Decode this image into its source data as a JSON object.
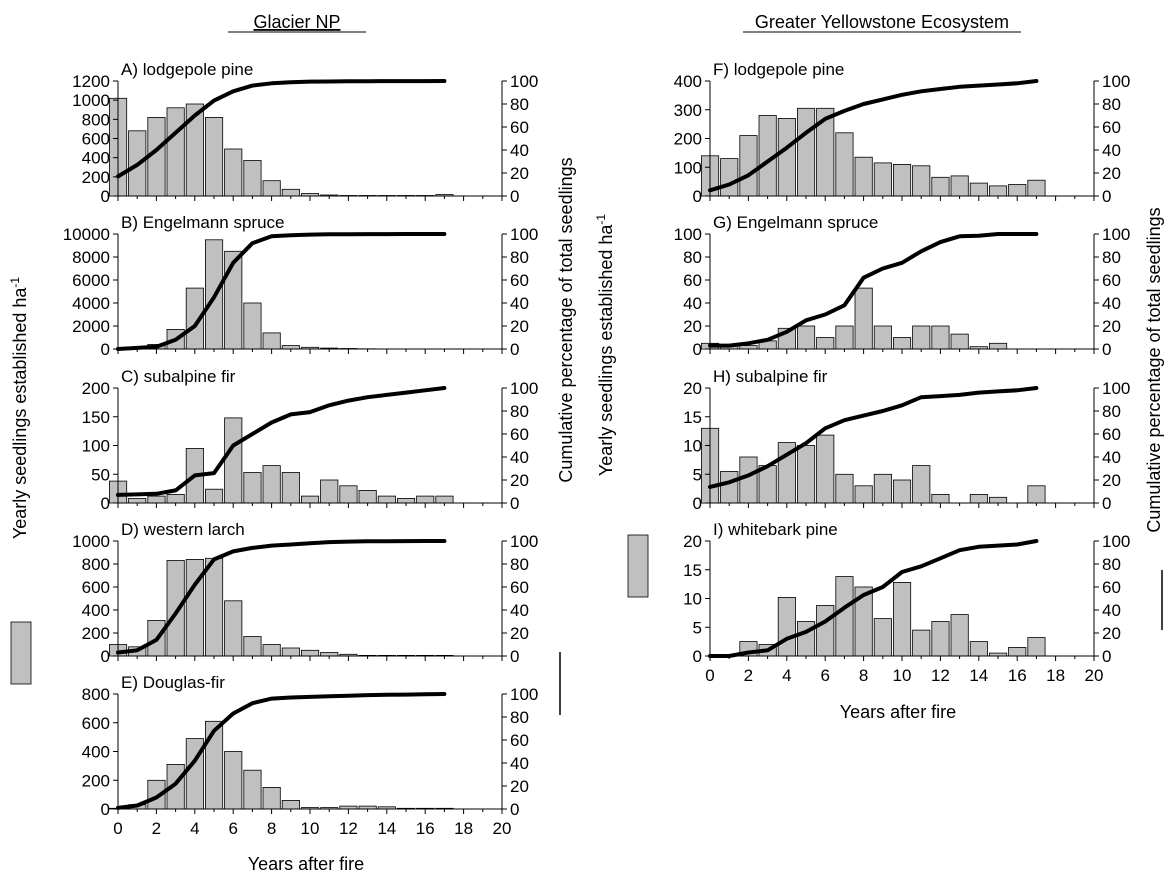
{
  "columns": [
    {
      "title": "Glacier NP"
    },
    {
      "title": "Greater Yellowstone Ecosystem"
    }
  ],
  "axis_labels": {
    "xlabel": "Years after fire",
    "ylabel_left": "Yearly seedlings established ha",
    "ylabel_left_superscript": "-1",
    "ylabel_right": "Cumulative percentage of total seedlings"
  },
  "legend": {
    "bar_symbol": "grey-box",
    "line_symbol": "black-line"
  },
  "chart_data": [
    {
      "type": "bar+line",
      "column": 0,
      "title": "A) lodgepole pine",
      "x": [
        0,
        1,
        2,
        3,
        4,
        5,
        6,
        7,
        8,
        9,
        10,
        11,
        12,
        13,
        14,
        15,
        16,
        17
      ],
      "values": [
        1020,
        680,
        820,
        920,
        960,
        820,
        490,
        370,
        160,
        70,
        25,
        10,
        5,
        5,
        5,
        5,
        5,
        15
      ],
      "cumulative": [
        17,
        27,
        40,
        55,
        70,
        83,
        91,
        96,
        98,
        99,
        99.5,
        99.6,
        99.7,
        99.8,
        99.9,
        99.9,
        99.9,
        100
      ],
      "ylim": [
        0,
        1200
      ],
      "yticks": [
        0,
        200,
        400,
        600,
        800,
        1000,
        1200
      ],
      "y2lim": [
        0,
        100
      ],
      "y2ticks": [
        0,
        20,
        40,
        60,
        80,
        100
      ],
      "xlim": [
        0,
        20
      ],
      "xticks": [
        0,
        2,
        4,
        6,
        8,
        10,
        12,
        14,
        16,
        18,
        20
      ]
    },
    {
      "type": "bar+line",
      "column": 0,
      "title": "B) Engelmann spruce",
      "x": [
        0,
        1,
        2,
        3,
        4,
        5,
        6,
        7,
        8,
        9,
        10,
        11,
        12,
        13,
        14,
        15,
        16,
        17
      ],
      "values": [
        0,
        20,
        400,
        1700,
        5300,
        9500,
        8500,
        4000,
        1400,
        300,
        150,
        80,
        40,
        20,
        10,
        5,
        5,
        5
      ],
      "cumulative": [
        0,
        1,
        2,
        8,
        20,
        45,
        75,
        92,
        98,
        99,
        99.5,
        99.7,
        99.8,
        99.9,
        99.9,
        100,
        100,
        100
      ],
      "ylim": [
        0,
        10000
      ],
      "yticks": [
        0,
        2000,
        4000,
        6000,
        8000,
        10000
      ],
      "y2lim": [
        0,
        100
      ],
      "y2ticks": [
        0,
        20,
        40,
        60,
        80,
        100
      ],
      "xlim": [
        0,
        20
      ],
      "xticks": [
        0,
        2,
        4,
        6,
        8,
        10,
        12,
        14,
        16,
        18,
        20
      ]
    },
    {
      "type": "bar+line",
      "column": 0,
      "title": "C) subalpine fir",
      "x": [
        0,
        1,
        2,
        3,
        4,
        5,
        6,
        7,
        8,
        9,
        10,
        11,
        12,
        13,
        14,
        15,
        16,
        17
      ],
      "values": [
        38,
        8,
        12,
        15,
        95,
        24,
        148,
        53,
        65,
        53,
        12,
        40,
        30,
        22,
        12,
        8,
        12,
        12
      ],
      "cumulative": [
        7,
        7.5,
        8,
        11,
        24,
        26,
        50,
        60,
        70,
        77,
        79,
        85,
        89,
        92,
        94,
        96,
        98,
        100
      ],
      "ylim": [
        0,
        200
      ],
      "yticks": [
        0,
        50,
        100,
        150,
        200
      ],
      "y2lim": [
        0,
        100
      ],
      "y2ticks": [
        0,
        20,
        40,
        60,
        80,
        100
      ],
      "xlim": [
        0,
        20
      ],
      "xticks": [
        0,
        2,
        4,
        6,
        8,
        10,
        12,
        14,
        16,
        18,
        20
      ]
    },
    {
      "type": "bar+line",
      "column": 0,
      "title": "D) western larch",
      "x": [
        0,
        1,
        2,
        3,
        4,
        5,
        6,
        7,
        8,
        9,
        10,
        11,
        12,
        13,
        14,
        15,
        16,
        17
      ],
      "values": [
        100,
        80,
        310,
        830,
        840,
        850,
        480,
        170,
        100,
        70,
        50,
        30,
        15,
        5,
        5,
        5,
        5,
        5
      ],
      "cumulative": [
        3,
        5,
        14,
        37,
        62,
        84,
        91,
        94,
        96,
        97,
        98,
        99,
        99.5,
        99.7,
        99.8,
        99.9,
        100,
        100
      ],
      "ylim": [
        0,
        1000
      ],
      "yticks": [
        0,
        200,
        400,
        600,
        800,
        1000
      ],
      "y2lim": [
        0,
        100
      ],
      "y2ticks": [
        0,
        20,
        40,
        60,
        80,
        100
      ],
      "xlim": [
        0,
        20
      ],
      "xticks": [
        0,
        2,
        4,
        6,
        8,
        10,
        12,
        14,
        16,
        18,
        20
      ]
    },
    {
      "type": "bar+line",
      "column": 0,
      "title": "E) Douglas-fir",
      "x": [
        0,
        1,
        2,
        3,
        4,
        5,
        6,
        7,
        8,
        9,
        10,
        11,
        12,
        13,
        14,
        15,
        16,
        17
      ],
      "values": [
        5,
        30,
        200,
        310,
        490,
        610,
        400,
        270,
        150,
        60,
        10,
        10,
        20,
        20,
        15,
        5,
        5,
        5
      ],
      "cumulative": [
        1,
        3,
        10,
        22,
        42,
        68,
        83,
        92,
        96,
        97,
        97.5,
        98,
        98.5,
        99,
        99.3,
        99.5,
        99.8,
        100
      ],
      "ylim": [
        0,
        800
      ],
      "yticks": [
        0,
        200,
        400,
        600,
        800
      ],
      "y2lim": [
        0,
        100
      ],
      "y2ticks": [
        0,
        20,
        40,
        60,
        80,
        100
      ],
      "xlim": [
        0,
        20
      ],
      "xticks": [
        0,
        2,
        4,
        6,
        8,
        10,
        12,
        14,
        16,
        18,
        20
      ]
    },
    {
      "type": "bar+line",
      "column": 1,
      "title": "F) lodgepole pine",
      "x": [
        0,
        1,
        2,
        3,
        4,
        5,
        6,
        7,
        8,
        9,
        10,
        11,
        12,
        13,
        14,
        15,
        16,
        17
      ],
      "values": [
        140,
        130,
        210,
        280,
        270,
        305,
        305,
        220,
        135,
        115,
        110,
        105,
        65,
        70,
        45,
        35,
        40,
        55
      ],
      "cumulative": [
        5,
        10,
        18,
        30,
        42,
        55,
        67,
        74,
        80,
        84,
        88,
        91,
        93,
        95,
        96,
        97,
        98,
        100
      ],
      "ylim": [
        0,
        400
      ],
      "yticks": [
        0,
        100,
        200,
        300,
        400
      ],
      "y2lim": [
        0,
        100
      ],
      "y2ticks": [
        0,
        20,
        40,
        60,
        80,
        100
      ],
      "xlim": [
        0,
        20
      ],
      "xticks": [
        0,
        2,
        4,
        6,
        8,
        10,
        12,
        14,
        16,
        18,
        20
      ]
    },
    {
      "type": "bar+line",
      "column": 1,
      "title": "G) Engelmann spruce",
      "x": [
        0,
        1,
        2,
        3,
        4,
        5,
        6,
        7,
        8,
        9,
        10,
        11,
        12,
        13,
        14,
        15,
        16,
        17
      ],
      "values": [
        5,
        3,
        3,
        7,
        18,
        20,
        10,
        20,
        53,
        20,
        10,
        20,
        20,
        13,
        2,
        5,
        0,
        0
      ],
      "cumulative": [
        3,
        3,
        5,
        8,
        15,
        25,
        30,
        38,
        62,
        70,
        75,
        85,
        93,
        98,
        98.5,
        100,
        100,
        100
      ],
      "ylim": [
        0,
        100
      ],
      "yticks": [
        0,
        20,
        40,
        60,
        80,
        100
      ],
      "y2lim": [
        0,
        100
      ],
      "y2ticks": [
        0,
        20,
        40,
        60,
        80,
        100
      ],
      "xlim": [
        0,
        20
      ],
      "xticks": [
        0,
        2,
        4,
        6,
        8,
        10,
        12,
        14,
        16,
        18,
        20
      ]
    },
    {
      "type": "bar+line",
      "column": 1,
      "title": "H) subalpine fir",
      "x": [
        0,
        1,
        2,
        3,
        4,
        5,
        6,
        7,
        8,
        9,
        10,
        11,
        12,
        13,
        14,
        15,
        16,
        17
      ],
      "values": [
        13,
        5.5,
        8,
        6.5,
        10.5,
        10,
        11.8,
        5,
        3,
        5,
        4,
        6.5,
        1.5,
        0,
        1.5,
        1,
        0,
        3
      ],
      "cumulative": [
        14,
        18,
        24,
        32,
        42,
        52,
        65,
        72,
        76,
        80,
        85,
        92,
        93,
        94,
        96,
        97,
        98,
        100
      ],
      "ylim": [
        0,
        20
      ],
      "yticks": [
        0,
        5,
        10,
        15,
        20
      ],
      "y2lim": [
        0,
        100
      ],
      "y2ticks": [
        0,
        20,
        40,
        60,
        80,
        100
      ],
      "xlim": [
        0,
        20
      ],
      "xticks": [
        0,
        2,
        4,
        6,
        8,
        10,
        12,
        14,
        16,
        18,
        20
      ]
    },
    {
      "type": "bar+line",
      "column": 1,
      "title": "I) whitebark pine",
      "x": [
        0,
        1,
        2,
        3,
        4,
        5,
        6,
        7,
        8,
        9,
        10,
        11,
        12,
        13,
        14,
        15,
        16,
        17
      ],
      "values": [
        0,
        0,
        2.5,
        2,
        10.2,
        6,
        8.8,
        13.8,
        12,
        6.5,
        12.8,
        4.5,
        6,
        7.2,
        2.5,
        0.5,
        1.5,
        3.2
      ],
      "cumulative": [
        0,
        0,
        3,
        5,
        15,
        21,
        30,
        42,
        53,
        60,
        73,
        78,
        85,
        92,
        95,
        96,
        97,
        100
      ],
      "ylim": [
        0,
        20
      ],
      "yticks": [
        0,
        5,
        10,
        15,
        20
      ],
      "y2lim": [
        0,
        100
      ],
      "y2ticks": [
        0,
        20,
        40,
        60,
        80,
        100
      ],
      "xlim": [
        0,
        20
      ],
      "xticks": [
        0,
        2,
        4,
        6,
        8,
        10,
        12,
        14,
        16,
        18,
        20
      ]
    }
  ]
}
